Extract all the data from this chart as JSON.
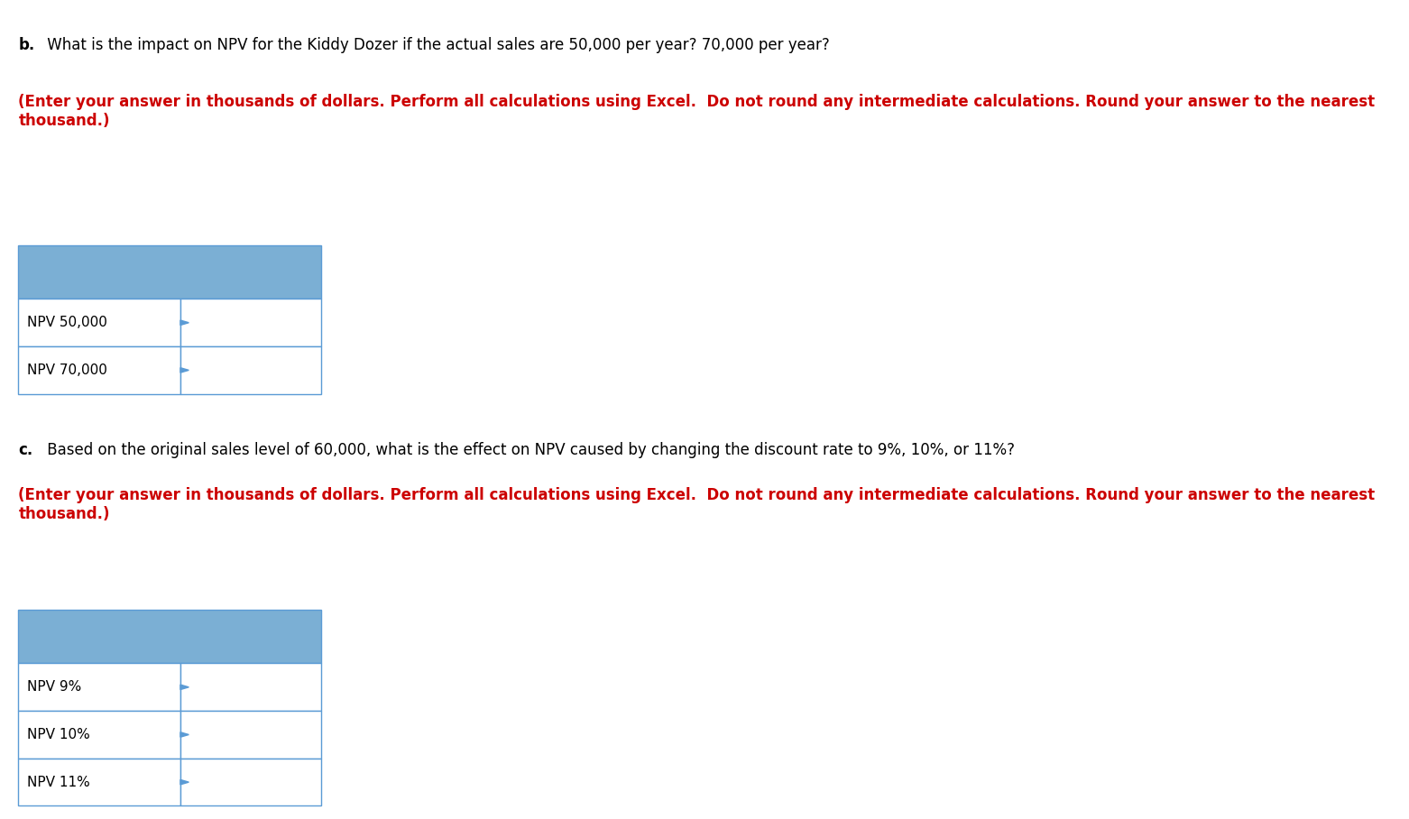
{
  "bg_color": "#ffffff",
  "section_b": {
    "text_normal": " What is the impact on NPV for the Kiddy Dozer if the actual sales are 50,000 per year? 70,000 per year? ",
    "text_bold_red": "(Enter your answer in thousands of dollars. Perform all calculations using Excel.  Do not round any intermediate calculations. Round your answer to the nearest thousand.)",
    "table_rows": [
      "NPV 50,000",
      "NPV 70,000"
    ],
    "header_color": "#7BAFD4",
    "cell_color": "#ffffff",
    "border_color": "#5B9BD5"
  },
  "section_c": {
    "text_normal": " Based on the original sales level of 60,000, what is the effect on NPV caused by changing the discount rate to 9%, 10%, or 11%? ",
    "text_bold_red": "(Enter your answer in thousands of dollars. Perform all calculations using Excel.  Do not round any intermediate calculations. Round your answer to the nearest thousand.)",
    "table_rows": [
      "NPV 9%",
      "NPV 10%",
      "NPV 11%"
    ],
    "header_color": "#7BAFD4",
    "cell_color": "#ffffff",
    "border_color": "#5B9BD5"
  }
}
